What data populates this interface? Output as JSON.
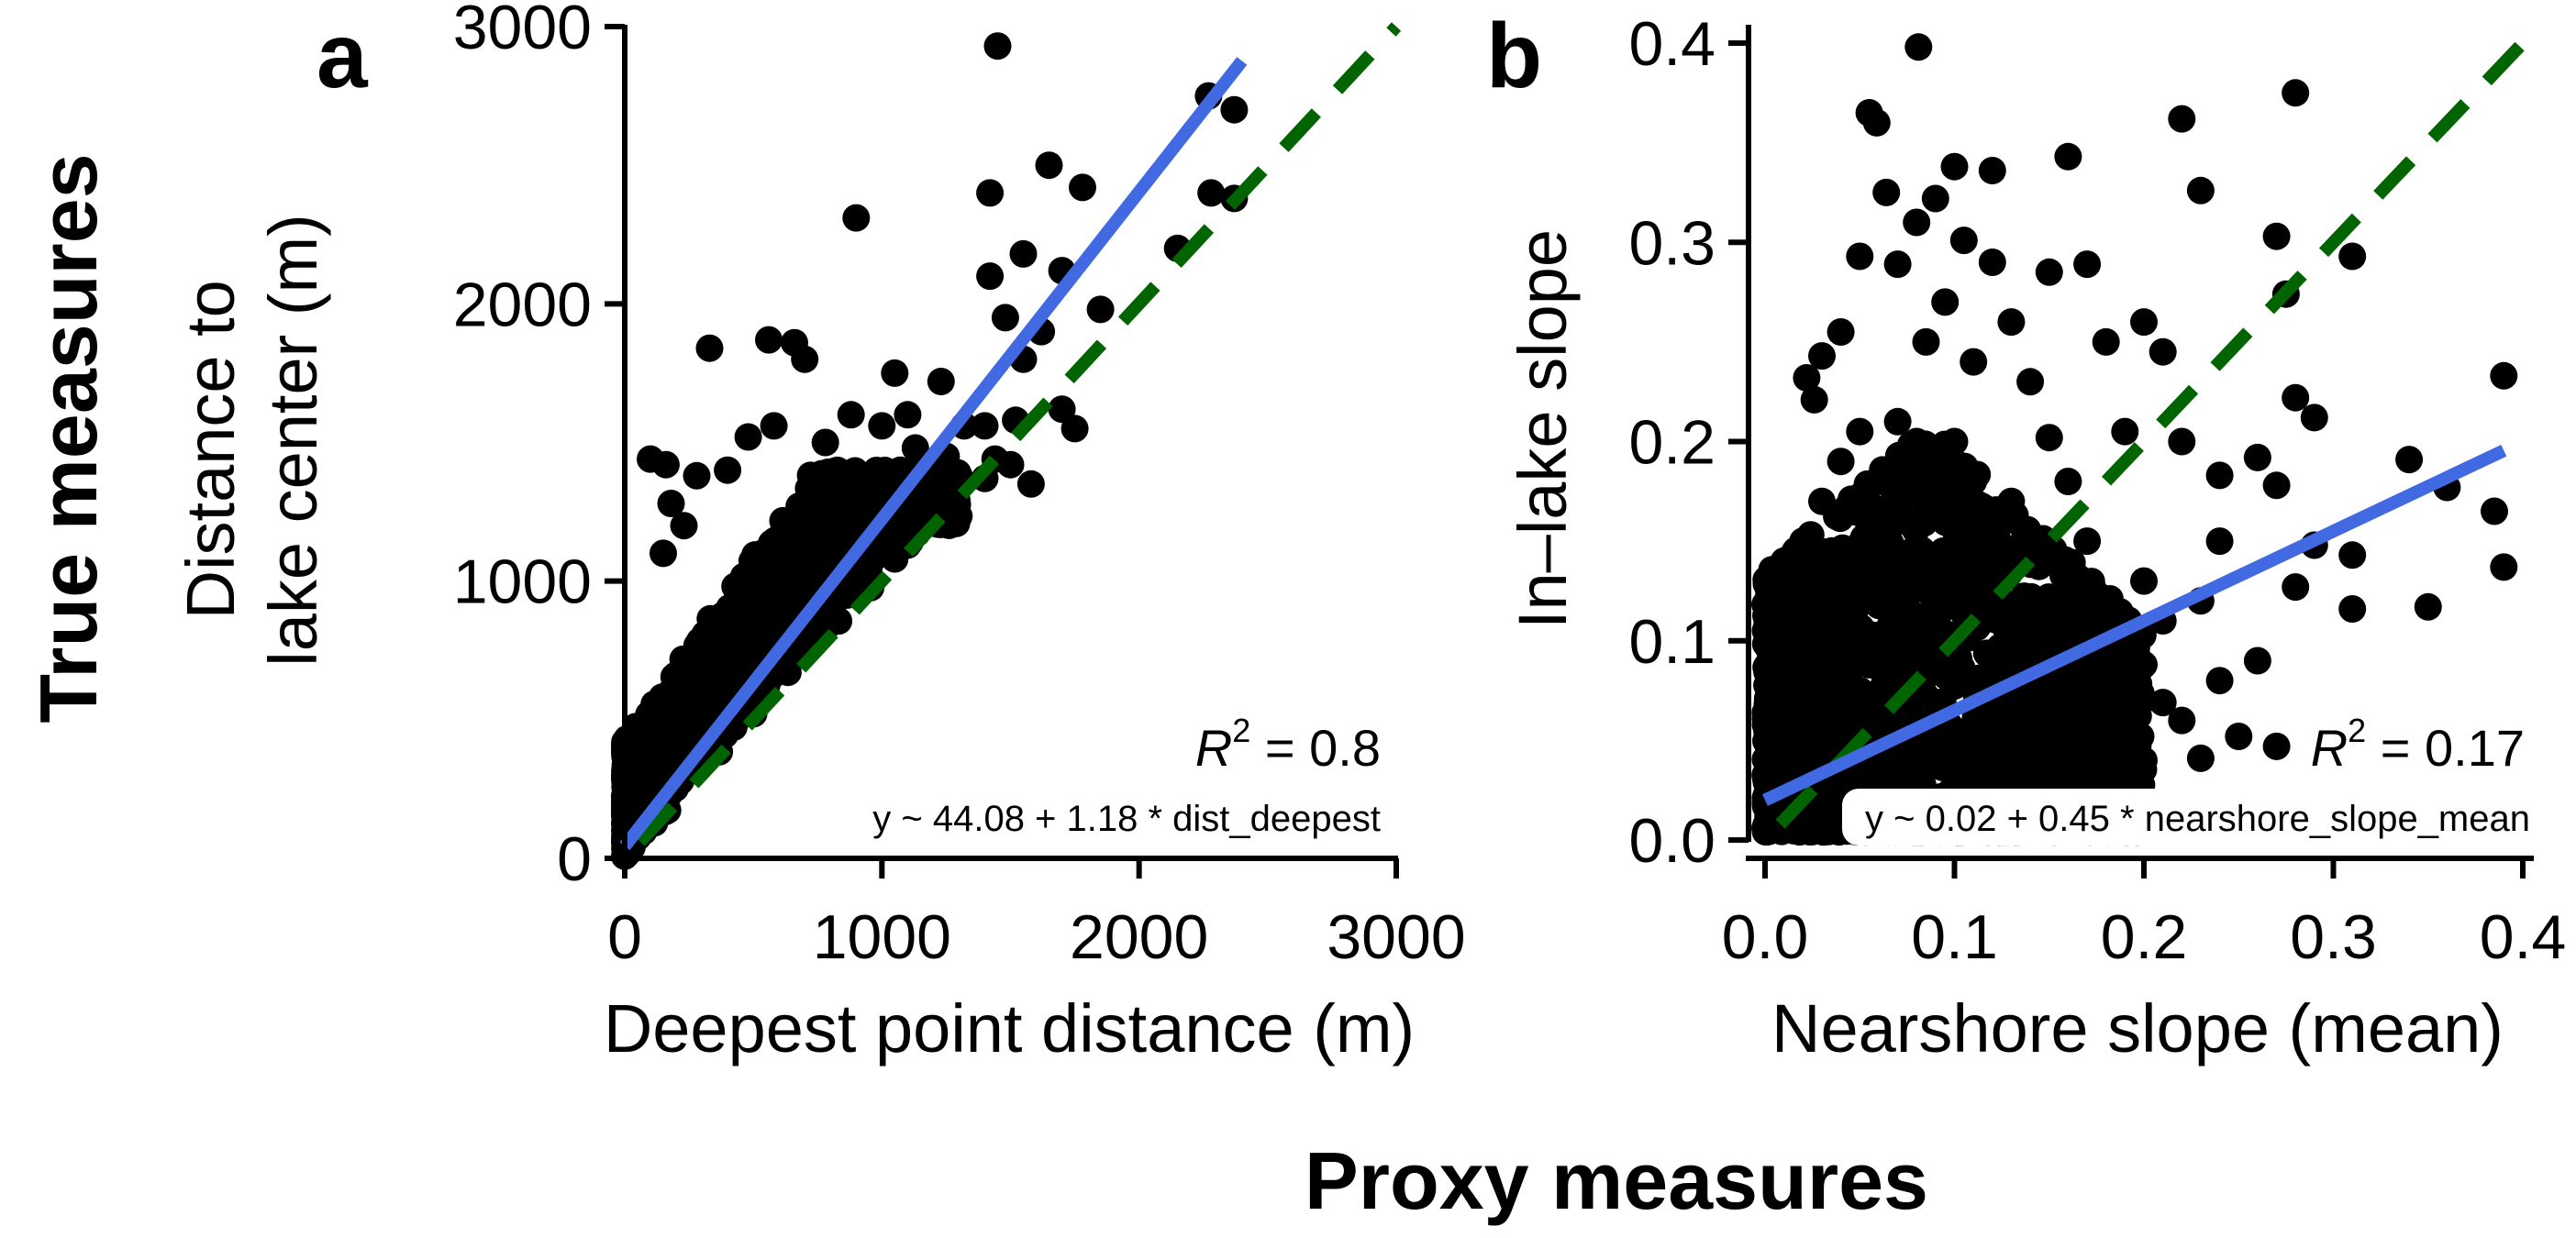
{
  "figure": {
    "y_title": "True measures",
    "x_title": "Proxy measures"
  },
  "chart_data": [
    {
      "type": "scatter",
      "panel_label": "a",
      "xlabel": "Deepest point distance (m)",
      "ylabel_lines": [
        "Distance to",
        "lake center (m)"
      ],
      "xlim": [
        0,
        3000
      ],
      "ylim": [
        0,
        3000
      ],
      "xticks": [
        0,
        1000,
        2000,
        3000
      ],
      "yticks": [
        0,
        1000,
        2000,
        3000
      ],
      "grid": false,
      "r2_label": "R",
      "r2_sup": "2",
      "r2_value": " = 0.8",
      "equation": "y ~ 44.08 + 1.18 * dist_deepest",
      "fit_line": {
        "intercept": 44.08,
        "slope": 1.18,
        "x_range": [
          0,
          2400
        ],
        "color": "#4169E1"
      },
      "identity_line": {
        "x_range": [
          0,
          3000
        ],
        "color": "#006400"
      },
      "points": [
        [
          1450,
          2930
        ],
        [
          2270,
          2750
        ],
        [
          2370,
          2700
        ],
        [
          1650,
          2500
        ],
        [
          1780,
          2420
        ],
        [
          1420,
          2400
        ],
        [
          2280,
          2400
        ],
        [
          2370,
          2380
        ],
        [
          900,
          2310
        ],
        [
          2150,
          2200
        ],
        [
          1550,
          2180
        ],
        [
          1420,
          2100
        ],
        [
          1700,
          2120
        ],
        [
          1850,
          1980
        ],
        [
          1480,
          1950
        ],
        [
          1620,
          1900
        ],
        [
          1550,
          1800
        ],
        [
          560,
          1870
        ],
        [
          660,
          1860
        ],
        [
          330,
          1840
        ],
        [
          700,
          1800
        ],
        [
          1230,
          1720
        ],
        [
          1050,
          1750
        ],
        [
          1100,
          1600
        ],
        [
          880,
          1600
        ],
        [
          1000,
          1560
        ],
        [
          780,
          1500
        ],
        [
          1320,
          1560
        ],
        [
          1520,
          1580
        ],
        [
          1440,
          1440
        ],
        [
          1130,
          1480
        ],
        [
          1300,
          1380
        ],
        [
          1250,
          1450
        ],
        [
          1400,
          1560
        ],
        [
          1200,
          1250
        ],
        [
          580,
          1560
        ],
        [
          480,
          1520
        ],
        [
          760,
          1380
        ],
        [
          900,
          1300
        ],
        [
          1000,
          1200
        ],
        [
          1050,
          1080
        ],
        [
          1100,
          1130
        ],
        [
          950,
          1050
        ],
        [
          100,
          1440
        ],
        [
          160,
          1420
        ],
        [
          280,
          1380
        ],
        [
          400,
          1400
        ],
        [
          180,
          1280
        ],
        [
          230,
          1200
        ],
        [
          150,
          1100
        ],
        [
          1400,
          1370
        ],
        [
          1500,
          1420
        ],
        [
          1580,
          1350
        ],
        [
          1700,
          1620
        ],
        [
          1750,
          1550
        ]
      ]
    },
    {
      "type": "scatter",
      "panel_label": "b",
      "xlabel": "Nearshore slope (mean)",
      "ylabel": "In–lake slope",
      "xlim": [
        0,
        0.4
      ],
      "ylim": [
        0,
        0.4
      ],
      "xticks": [
        0.0,
        0.1,
        0.2,
        0.3,
        0.4
      ],
      "yticks": [
        0.0,
        0.1,
        0.2,
        0.3,
        0.4
      ],
      "grid": false,
      "r2_label": "R",
      "r2_sup": "2",
      "r2_value": " = 0.17",
      "equation": "y ~ 0.02 + 0.45 * nearshore_slope_mean",
      "fit_line": {
        "intercept": 0.02,
        "slope": 0.45,
        "x_range": [
          0,
          0.39
        ],
        "color": "#4169E1"
      },
      "identity_line": {
        "x_range": [
          0,
          0.4
        ],
        "color": "#006400"
      },
      "points": [
        [
          0.081,
          0.398
        ],
        [
          0.055,
          0.365
        ],
        [
          0.059,
          0.36
        ],
        [
          0.22,
          0.362
        ],
        [
          0.28,
          0.375
        ],
        [
          0.23,
          0.326
        ],
        [
          0.1,
          0.338
        ],
        [
          0.12,
          0.336
        ],
        [
          0.16,
          0.343
        ],
        [
          0.31,
          0.293
        ],
        [
          0.27,
          0.303
        ],
        [
          0.064,
          0.325
        ],
        [
          0.09,
          0.322
        ],
        [
          0.08,
          0.31
        ],
        [
          0.105,
          0.301
        ],
        [
          0.05,
          0.293
        ],
        [
          0.07,
          0.289
        ],
        [
          0.12,
          0.29
        ],
        [
          0.15,
          0.285
        ],
        [
          0.17,
          0.289
        ],
        [
          0.04,
          0.255
        ],
        [
          0.03,
          0.243
        ],
        [
          0.022,
          0.232
        ],
        [
          0.026,
          0.221
        ],
        [
          0.275,
          0.274
        ],
        [
          0.28,
          0.222
        ],
        [
          0.29,
          0.212
        ],
        [
          0.39,
          0.233
        ],
        [
          0.26,
          0.192
        ],
        [
          0.27,
          0.178
        ],
        [
          0.34,
          0.191
        ],
        [
          0.36,
          0.177
        ],
        [
          0.24,
          0.183
        ],
        [
          0.29,
          0.148
        ],
        [
          0.31,
          0.143
        ],
        [
          0.28,
          0.127
        ],
        [
          0.31,
          0.116
        ],
        [
          0.35,
          0.117
        ],
        [
          0.385,
          0.165
        ],
        [
          0.39,
          0.137
        ],
        [
          0.26,
          0.09
        ],
        [
          0.24,
          0.08
        ],
        [
          0.25,
          0.052
        ],
        [
          0.27,
          0.047
        ],
        [
          0.21,
          0.069
        ],
        [
          0.22,
          0.06
        ],
        [
          0.23,
          0.041
        ],
        [
          0.2,
          0.04
        ],
        [
          0.19,
          0.095
        ],
        [
          0.18,
          0.11
        ],
        [
          0.17,
          0.15
        ],
        [
          0.16,
          0.18
        ],
        [
          0.15,
          0.202
        ],
        [
          0.14,
          0.23
        ],
        [
          0.13,
          0.26
        ],
        [
          0.11,
          0.24
        ],
        [
          0.095,
          0.27
        ],
        [
          0.085,
          0.25
        ],
        [
          0.2,
          0.26
        ],
        [
          0.21,
          0.245
        ],
        [
          0.18,
          0.25
        ],
        [
          0.19,
          0.205
        ],
        [
          0.22,
          0.2
        ],
        [
          0.24,
          0.15
        ],
        [
          0.23,
          0.12
        ],
        [
          0.21,
          0.11
        ],
        [
          0.2,
          0.13
        ],
        [
          0.01,
          0.14
        ],
        [
          0.005,
          0.125
        ],
        [
          0.015,
          0.11
        ],
        [
          0.02,
          0.15
        ],
        [
          0.03,
          0.17
        ],
        [
          0.04,
          0.19
        ],
        [
          0.05,
          0.205
        ],
        [
          0.06,
          0.18
        ],
        [
          0.07,
          0.21
        ],
        [
          0.08,
          0.2
        ],
        [
          0.09,
          0.19
        ],
        [
          0.1,
          0.2
        ],
        [
          0.11,
          0.18
        ],
        [
          0.12,
          0.16
        ],
        [
          0.13,
          0.17
        ],
        [
          0.14,
          0.14
        ],
        [
          0.15,
          0.12
        ],
        [
          0.16,
          0.1
        ],
        [
          0.17,
          0.09
        ],
        [
          0.18,
          0.06
        ],
        [
          0.19,
          0.05
        ],
        [
          0.16,
          0.06
        ],
        [
          0.14,
          0.08
        ]
      ]
    }
  ]
}
